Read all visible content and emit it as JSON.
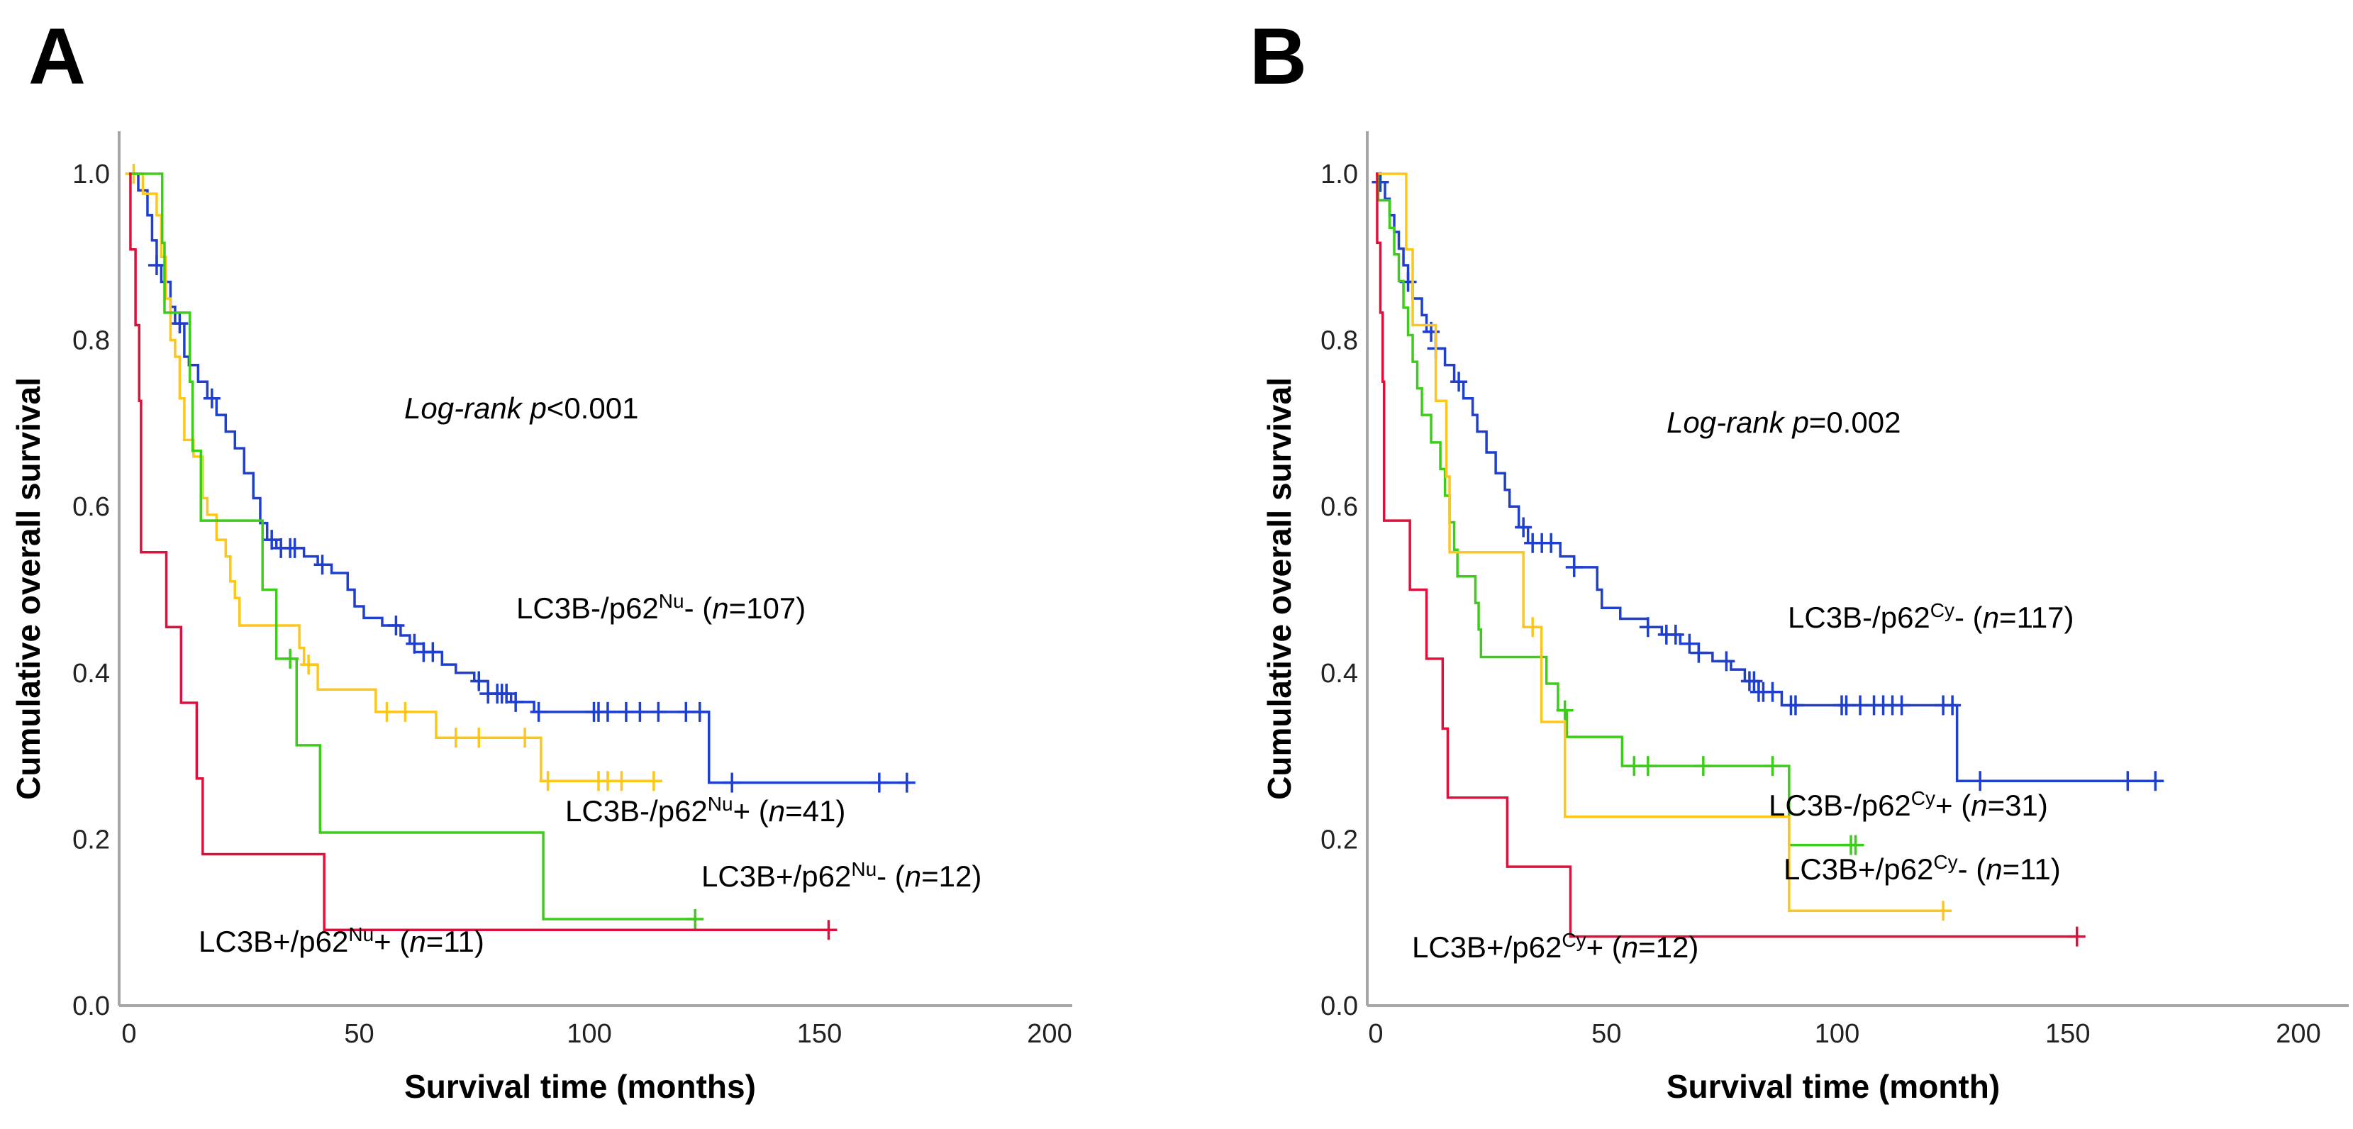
{
  "chart_data": [
    {
      "type": "line",
      "subtype": "kaplan-meier",
      "panel_letter": "A",
      "xlabel": "Survival time (months)",
      "ylabel": "Cumulative overall survival",
      "xlim": [
        0,
        200
      ],
      "ylim": [
        0,
        1.0
      ],
      "xticks": [
        "0",
        "50",
        "100",
        "150",
        "200"
      ],
      "yticks": [
        "0.0",
        "0.2",
        "0.4",
        "0.6",
        "0.8",
        "1.0"
      ],
      "grid": false,
      "annotation": {
        "text": "Log-rank",
        "p_symbol": "p",
        "p_value": "<0.001"
      },
      "series": [
        {
          "name": "LC3B-/p62Nu- (n=107)",
          "label": {
            "base": "LC3B-/p62",
            "sup": "Nu",
            "sign": "-",
            "n_symbol": "n",
            "n": "=107)"
          },
          "color": "#1f3fcf",
          "steps": [
            [
              0,
              1.0
            ],
            [
              2,
              0.98
            ],
            [
              4,
              0.95
            ],
            [
              5,
              0.92
            ],
            [
              6,
              0.89
            ],
            [
              7,
              0.87
            ],
            [
              9,
              0.84
            ],
            [
              10,
              0.82
            ],
            [
              12,
              0.78
            ],
            [
              13,
              0.77
            ],
            [
              15,
              0.75
            ],
            [
              17,
              0.73
            ],
            [
              19,
              0.71
            ],
            [
              21,
              0.69
            ],
            [
              23,
              0.67
            ],
            [
              25,
              0.64
            ],
            [
              27,
              0.61
            ],
            [
              28.5,
              0.58
            ],
            [
              30,
              0.56
            ],
            [
              32,
              0.55
            ],
            [
              38,
              0.54
            ],
            [
              41,
              0.53
            ],
            [
              44,
              0.52
            ],
            [
              47.5,
              0.5
            ],
            [
              49,
              0.48
            ],
            [
              51,
              0.466
            ],
            [
              55,
              0.457
            ],
            [
              59,
              0.445
            ],
            [
              61,
              0.435
            ],
            [
              64,
              0.425
            ],
            [
              68,
              0.41
            ],
            [
              71,
              0.4
            ],
            [
              75,
              0.39
            ],
            [
              78,
              0.375
            ],
            [
              83,
              0.365
            ],
            [
              88,
              0.353
            ],
            [
              126,
              0.268
            ]
          ],
          "end": 169,
          "censored": [
            6,
            11,
            18,
            31,
            33,
            35,
            36,
            42,
            58,
            62,
            64,
            66,
            76,
            78,
            80,
            81,
            82,
            84,
            89,
            101,
            102,
            104,
            108,
            111,
            115,
            121,
            124,
            131,
            163,
            169
          ]
        },
        {
          "name": "LC3B-/p62Nu+ (n=41)",
          "label": {
            "base": "LC3B-/p62",
            "sup": "Nu",
            "sign": "+",
            "n_symbol": "n",
            "n": "=41)"
          },
          "color": "#ffc61a",
          "steps": [
            [
              0,
              1.0
            ],
            [
              3,
              0.976
            ],
            [
              6,
              0.95
            ],
            [
              7,
              0.9
            ],
            [
              8,
              0.85
            ],
            [
              9,
              0.8
            ],
            [
              10,
              0.78
            ],
            [
              11,
              0.73
            ],
            [
              12,
              0.68
            ],
            [
              14,
              0.66
            ],
            [
              16,
              0.61
            ],
            [
              17,
              0.59
            ],
            [
              19,
              0.56
            ],
            [
              21,
              0.54
            ],
            [
              22,
              0.51
            ],
            [
              23,
              0.49
            ],
            [
              24,
              0.457
            ],
            [
              37,
              0.43
            ],
            [
              38,
              0.41
            ],
            [
              41,
              0.38
            ],
            [
              53.6,
              0.353
            ],
            [
              66.7,
              0.322
            ],
            [
              89.5,
              0.27
            ]
          ],
          "end": 114,
          "censored": [
            1,
            39,
            56,
            60,
            71,
            76,
            86,
            91,
            102,
            104,
            107,
            114
          ]
        },
        {
          "name": "LC3B+/p62Nu- (n=12)",
          "label": {
            "base": "LC3B+/p62",
            "sup": "Nu",
            "sign": "-",
            "n_symbol": "n",
            "n": "=12)"
          },
          "color": "#3ccc1a",
          "steps": [
            [
              0,
              1.0
            ],
            [
              7.2,
              0.917
            ],
            [
              7.7,
              0.833
            ],
            [
              13.2,
              0.75
            ],
            [
              13.8,
              0.667
            ],
            [
              15.6,
              0.583
            ],
            [
              29,
              0.5
            ],
            [
              32,
              0.417
            ],
            [
              36.4,
              0.313
            ],
            [
              41.5,
              0.208
            ],
            [
              90,
              0.104
            ]
          ],
          "end": 123,
          "censored": [
            35,
            123
          ]
        },
        {
          "name": "LC3B+/p62Nu+ (n=11)",
          "label": {
            "base": "LC3B+/p62",
            "sup": "Nu",
            "sign": "+",
            "n_symbol": "n",
            "n": "=11)"
          },
          "color": "#e0103c",
          "steps": [
            [
              0,
              1.0
            ],
            [
              0.3,
              0.909
            ],
            [
              1.4,
              0.818
            ],
            [
              2.2,
              0.727
            ],
            [
              2.6,
              0.545
            ],
            [
              8.1,
              0.455
            ],
            [
              11.3,
              0.364
            ],
            [
              14.7,
              0.273
            ],
            [
              16,
              0.182
            ],
            [
              42.4,
              0.091
            ]
          ],
          "end": 152,
          "censored": [
            152
          ]
        }
      ]
    },
    {
      "type": "line",
      "subtype": "kaplan-meier",
      "panel_letter": "B",
      "xlabel": "Survival time (month)",
      "ylabel": "Cumulative overall survival",
      "xlim": [
        0,
        200
      ],
      "ylim": [
        0,
        1.0
      ],
      "xticks": [
        "0",
        "50",
        "100",
        "150",
        "200"
      ],
      "yticks": [
        "0.0",
        "0.2",
        "0.4",
        "0.6",
        "0.8",
        "1.0"
      ],
      "grid": false,
      "annotation": {
        "text": "Log-rank",
        "p_symbol": "p",
        "p_value": "=0.002"
      },
      "series": [
        {
          "name": "LC3B-/p62Cy- (n=117)",
          "label": {
            "base": "LC3B-/p62",
            "sup": "Cy",
            "sign": "-",
            "n_symbol": "n",
            "n": "=117)"
          },
          "color": "#1f3fcf",
          "steps": [
            [
              0,
              1.0
            ],
            [
              1,
              0.99
            ],
            [
              2,
              0.97
            ],
            [
              3,
              0.95
            ],
            [
              4,
              0.93
            ],
            [
              5,
              0.91
            ],
            [
              6,
              0.89
            ],
            [
              7,
              0.87
            ],
            [
              8,
              0.85
            ],
            [
              10,
              0.83
            ],
            [
              11,
              0.81
            ],
            [
              13,
              0.79
            ],
            [
              15,
              0.77
            ],
            [
              17,
              0.75
            ],
            [
              19,
              0.73
            ],
            [
              21,
              0.71
            ],
            [
              22,
              0.69
            ],
            [
              24,
              0.665
            ],
            [
              26,
              0.64
            ],
            [
              28,
              0.62
            ],
            [
              29,
              0.6
            ],
            [
              31,
              0.575
            ],
            [
              33,
              0.556
            ],
            [
              40,
              0.54
            ],
            [
              43,
              0.527
            ],
            [
              48,
              0.5
            ],
            [
              49,
              0.478
            ],
            [
              53,
              0.465
            ],
            [
              59,
              0.455
            ],
            [
              62,
              0.446
            ],
            [
              66,
              0.435
            ],
            [
              70,
              0.424
            ],
            [
              73,
              0.414
            ],
            [
              77,
              0.404
            ],
            [
              80,
              0.39
            ],
            [
              83,
              0.377
            ],
            [
              88,
              0.361
            ],
            [
              126,
              0.27
            ]
          ],
          "end": 169,
          "censored": [
            1,
            7,
            12,
            13,
            18,
            32,
            34,
            36,
            38,
            43,
            59,
            63,
            65,
            68,
            70,
            76,
            81,
            82,
            83,
            84,
            86,
            90,
            91,
            101,
            102,
            105,
            108,
            110,
            112,
            114,
            123,
            125,
            131,
            163,
            169
          ]
        },
        {
          "name": "LC3B-/p62Cy+ (n=31)",
          "label": {
            "base": "LC3B-/p62",
            "sup": "Cy",
            "sign": "+",
            "n_symbol": "n",
            "n": "=31)"
          },
          "color": "#3ccc1a",
          "steps": [
            [
              0,
              1.0
            ],
            [
              0.5,
              0.968
            ],
            [
              3,
              0.935
            ],
            [
              4,
              0.903
            ],
            [
              5,
              0.871
            ],
            [
              6,
              0.839
            ],
            [
              7,
              0.806
            ],
            [
              8,
              0.774
            ],
            [
              9,
              0.742
            ],
            [
              10,
              0.71
            ],
            [
              12,
              0.677
            ],
            [
              14,
              0.645
            ],
            [
              15,
              0.613
            ],
            [
              16,
              0.581
            ],
            [
              17,
              0.548
            ],
            [
              17.7,
              0.516
            ],
            [
              21.6,
              0.484
            ],
            [
              22.3,
              0.452
            ],
            [
              22.8,
              0.419
            ],
            [
              37,
              0.387
            ],
            [
              39.5,
              0.355
            ],
            [
              41.4,
              0.323
            ],
            [
              53.4,
              0.288
            ],
            [
              89.6,
              0.193
            ]
          ],
          "end": 104,
          "censored": [
            41,
            56,
            59,
            71,
            86,
            103,
            104
          ]
        },
        {
          "name": "LC3B+/p62Cy- (n=11)",
          "label": {
            "base": "LC3B+/p62",
            "sup": "Cy",
            "sign": "-",
            "n_symbol": "n",
            "n": "=11)"
          },
          "color": "#ffc61a",
          "steps": [
            [
              0,
              1.0
            ],
            [
              6.6,
              0.909
            ],
            [
              8,
              0.818
            ],
            [
              13,
              0.727
            ],
            [
              15.3,
              0.636
            ],
            [
              16,
              0.545
            ],
            [
              32,
              0.455
            ],
            [
              35.9,
              0.341
            ],
            [
              41,
              0.227
            ],
            [
              89.6,
              0.114
            ]
          ],
          "end": 123,
          "censored": [
            34,
            123
          ]
        },
        {
          "name": "LC3B+/p62Cy+ (n=12)",
          "label": {
            "base": "LC3B+/p62",
            "sup": "Cy",
            "sign": "+",
            "n_symbol": "n",
            "n": "=12)"
          },
          "color": "#e0103c",
          "steps": [
            [
              0,
              1.0
            ],
            [
              0.3,
              0.917
            ],
            [
              1,
              0.833
            ],
            [
              1.5,
              0.75
            ],
            [
              1.8,
              0.583
            ],
            [
              7.4,
              0.5
            ],
            [
              11,
              0.417
            ],
            [
              14.5,
              0.333
            ],
            [
              15.6,
              0.25
            ],
            [
              28.5,
              0.167
            ],
            [
              42.2,
              0.083
            ]
          ],
          "end": 152,
          "censored": [
            152
          ]
        }
      ]
    }
  ]
}
